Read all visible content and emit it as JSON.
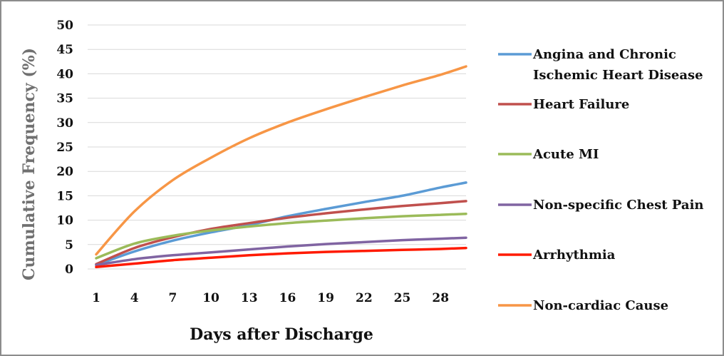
{
  "chart_data": {
    "type": "line",
    "title": "",
    "xlabel": "Days after Discharge",
    "ylabel": "Cumulative Frequency (%)",
    "ylim": [
      0,
      50
    ],
    "xlim": [
      1,
      30
    ],
    "x_ticks": [
      1,
      4,
      7,
      10,
      13,
      16,
      19,
      22,
      25,
      28
    ],
    "y_ticks": [
      0,
      5,
      10,
      15,
      20,
      25,
      30,
      35,
      40,
      45,
      50
    ],
    "grid": "horizontal",
    "legend": "right",
    "x": [
      1,
      4,
      7,
      10,
      13,
      16,
      19,
      22,
      25,
      28,
      30
    ],
    "series": [
      {
        "name": "Angina and Chronic Ischemic Heart Disease",
        "color": "#5b9bd5",
        "values": [
          0.8,
          3.6,
          5.8,
          7.5,
          9.0,
          10.8,
          12.3,
          13.7,
          15.0,
          16.7,
          17.7
        ]
      },
      {
        "name": "Heart Failure",
        "color": "#c0504d",
        "values": [
          1.0,
          4.3,
          6.5,
          8.2,
          9.4,
          10.5,
          11.4,
          12.2,
          12.9,
          13.5,
          13.9
        ]
      },
      {
        "name": "Acute MI",
        "color": "#9bbb59",
        "values": [
          2.2,
          5.2,
          6.8,
          7.9,
          8.7,
          9.4,
          9.9,
          10.4,
          10.8,
          11.1,
          11.3
        ]
      },
      {
        "name": "Non-specific Chest Pain",
        "color": "#8064a2",
        "values": [
          0.8,
          2.0,
          2.8,
          3.4,
          4.0,
          4.6,
          5.1,
          5.5,
          5.9,
          6.2,
          6.4
        ]
      },
      {
        "name": "Arrhythmia",
        "color": "#ff1a00",
        "values": [
          0.4,
          1.1,
          1.8,
          2.3,
          2.8,
          3.2,
          3.5,
          3.7,
          3.9,
          4.1,
          4.3
        ]
      },
      {
        "name": "Non-cardiac Cause",
        "color": "#f79646",
        "values": [
          3.0,
          11.8,
          18.2,
          22.8,
          26.8,
          30.0,
          32.7,
          35.2,
          37.6,
          39.8,
          41.5
        ]
      }
    ],
    "legend_lines": [
      [
        "Angina and Chronic",
        "Ischemic Heart Disease"
      ],
      [
        "Heart Failure"
      ],
      [
        "Acute MI"
      ],
      [
        "Non-specific Chest Pain"
      ],
      [
        "Arrhythmia"
      ],
      [
        "Non-cardiac Cause"
      ]
    ]
  }
}
